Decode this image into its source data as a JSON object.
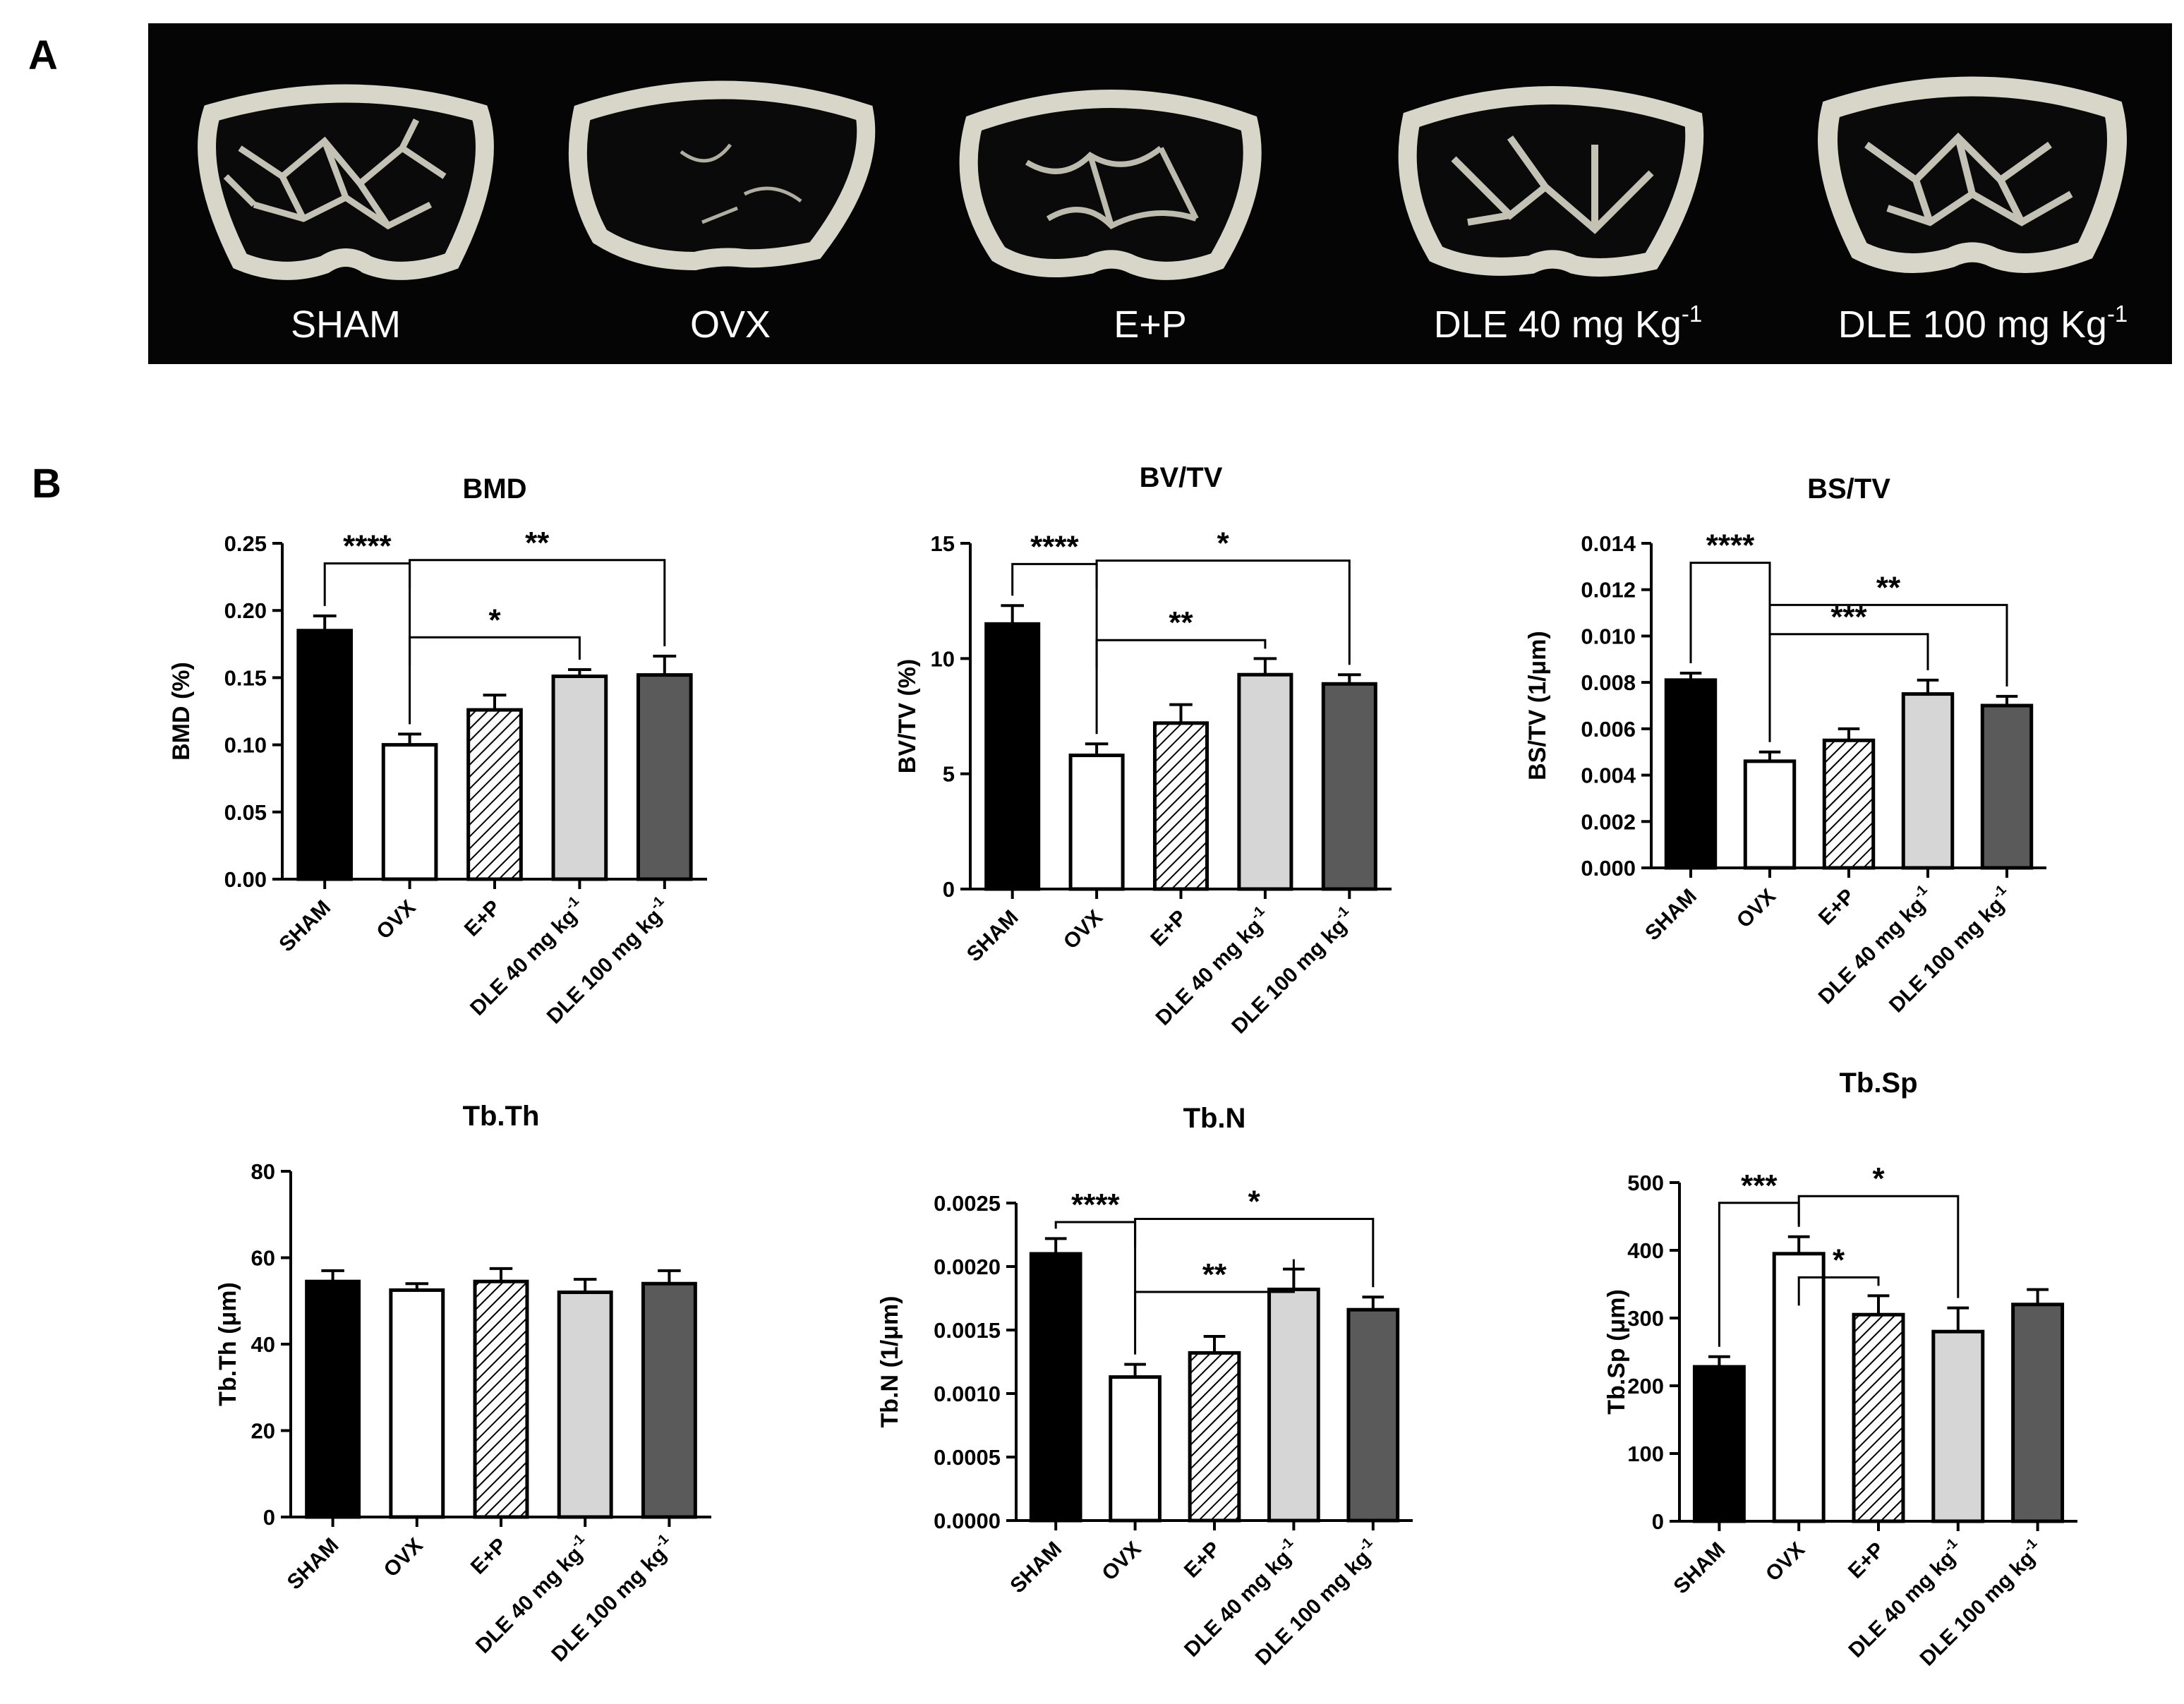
{
  "panels": {
    "a_letter": "A",
    "b_letter": "B"
  },
  "scan_labels": [
    {
      "text": "SHAM"
    },
    {
      "text": "OVX"
    },
    {
      "text": "E+P"
    },
    {
      "text": "DLE 40 mg Kg",
      "sup": "-1"
    },
    {
      "text": "DLE 100 mg Kg",
      "sup": "-1"
    }
  ],
  "category_labels": [
    {
      "text": "SHAM"
    },
    {
      "text": "OVX"
    },
    {
      "text": "E+P"
    },
    {
      "text": "DLE 40 mg kg",
      "sup": "-1"
    },
    {
      "text": "DLE 100 mg kg",
      "sup": "-1"
    }
  ],
  "chart_data": [
    {
      "type": "bar",
      "title": "BMD",
      "ylabel": "BMD (%)",
      "categories": [
        "SHAM",
        "OVX",
        "E+P",
        "DLE 40 mg kg-1",
        "DLE 100 mg kg-1"
      ],
      "values": [
        0.185,
        0.1,
        0.126,
        0.151,
        0.152
      ],
      "errors": [
        0.011,
        0.008,
        0.011,
        0.005,
        0.014
      ],
      "ylim": [
        0,
        0.25
      ],
      "yticks": [
        "0.00",
        "0.05",
        "0.10",
        "0.15",
        "0.20",
        "0.25"
      ],
      "significance": [
        {
          "label": "****",
          "from": 0,
          "to": 1
        },
        {
          "label": "**",
          "from": 1,
          "to": 4
        },
        {
          "label": "*",
          "from": 1,
          "to": 3
        }
      ]
    },
    {
      "type": "bar",
      "title": "BV/TV",
      "ylabel": "BV/TV (%)",
      "categories": [
        "SHAM",
        "OVX",
        "E+P",
        "DLE 40 mg kg-1",
        "DLE 100 mg kg-1"
      ],
      "values": [
        11.5,
        5.8,
        7.2,
        9.3,
        8.9
      ],
      "errors": [
        0.8,
        0.5,
        0.8,
        0.7,
        0.4
      ],
      "ylim": [
        0,
        15
      ],
      "yticks": [
        "0",
        "5",
        "10",
        "15"
      ],
      "significance": [
        {
          "label": "****",
          "from": 0,
          "to": 1
        },
        {
          "label": "*",
          "from": 1,
          "to": 4
        },
        {
          "label": "**",
          "from": 1,
          "to": 3
        }
      ]
    },
    {
      "type": "bar",
      "title": "BS/TV",
      "ylabel": "BS/TV (1/μm)",
      "categories": [
        "SHAM",
        "OVX",
        "E+P",
        "DLE 40 mg kg-1",
        "DLE 100 mg kg-1"
      ],
      "values": [
        0.0081,
        0.0046,
        0.0055,
        0.0075,
        0.007
      ],
      "errors": [
        0.0003,
        0.0004,
        0.0005,
        0.0006,
        0.0004
      ],
      "ylim": [
        0,
        0.014
      ],
      "yticks": [
        "0.000",
        "0.002",
        "0.004",
        "0.006",
        "0.008",
        "0.010",
        "0.012",
        "0.014"
      ],
      "significance": [
        {
          "label": "****",
          "from": 0,
          "to": 1
        },
        {
          "label": "**",
          "from": 1,
          "to": 4
        },
        {
          "label": "***",
          "from": 1,
          "to": 3
        }
      ]
    },
    {
      "type": "bar",
      "title": "Tb.Th",
      "ylabel": "Tb.Th (μm)",
      "categories": [
        "SHAM",
        "OVX",
        "E+P",
        "DLE 40 mg kg-1",
        "DLE 100 mg kg-1"
      ],
      "values": [
        54.5,
        52.5,
        54.5,
        52.0,
        54.0
      ],
      "errors": [
        2.5,
        1.5,
        3.0,
        3.0,
        3.0
      ],
      "ylim": [
        0,
        80
      ],
      "yticks": [
        "0",
        "20",
        "40",
        "60",
        "80"
      ],
      "significance": []
    },
    {
      "type": "bar",
      "title": "Tb.N",
      "ylabel": "Tb.N (1/μm)",
      "categories": [
        "SHAM",
        "OVX",
        "E+P",
        "DLE 40 mg kg-1",
        "DLE 100 mg kg-1"
      ],
      "values": [
        0.0021,
        0.00113,
        0.00132,
        0.00182,
        0.00166
      ],
      "errors": [
        0.00012,
        0.0001,
        0.00013,
        0.00016,
        0.0001
      ],
      "ylim": [
        0,
        0.0025
      ],
      "yticks": [
        "0.0000",
        "0.0005",
        "0.0010",
        "0.0015",
        "0.0020",
        "0.0025"
      ],
      "significance": [
        {
          "label": "****",
          "from": 0,
          "to": 1
        },
        {
          "label": "*",
          "from": 1,
          "to": 4
        },
        {
          "label": "**",
          "from": 1,
          "to": 3
        }
      ]
    },
    {
      "type": "bar",
      "title": "Tb.Sp",
      "ylabel": "Tb.Sp (μm)",
      "categories": [
        "SHAM",
        "OVX",
        "E+P",
        "DLE 40 mg kg-1",
        "DLE 100 mg kg-1"
      ],
      "values": [
        228,
        395,
        305,
        280,
        320
      ],
      "errors": [
        15,
        25,
        28,
        35,
        22
      ],
      "ylim": [
        0,
        500
      ],
      "yticks": [
        "0",
        "100",
        "200",
        "300",
        "400",
        "500"
      ],
      "significance": [
        {
          "label": "***",
          "from": 0,
          "to": 1
        },
        {
          "label": "*",
          "from": 1,
          "to": 3
        },
        {
          "label": "*",
          "from": 1,
          "to": 2
        }
      ]
    }
  ]
}
